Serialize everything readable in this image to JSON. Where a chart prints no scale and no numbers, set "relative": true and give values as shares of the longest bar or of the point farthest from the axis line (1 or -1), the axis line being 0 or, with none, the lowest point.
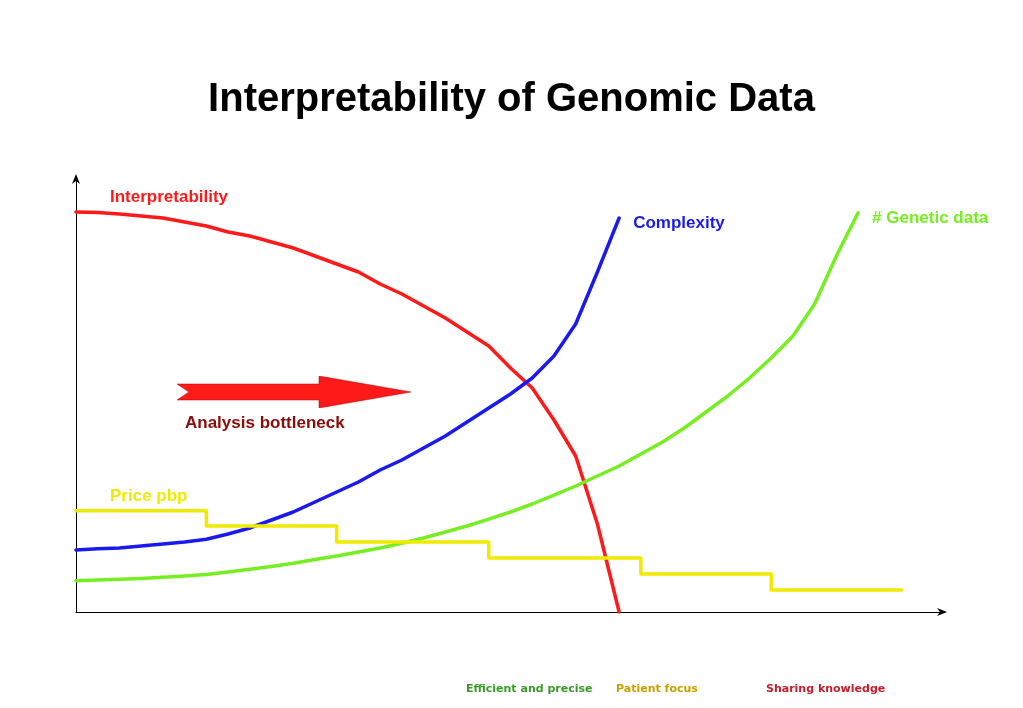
{
  "chart_data": {
    "type": "line",
    "title": "Interpretability of Genomic Data",
    "relative": true,
    "grid": false,
    "legend": false,
    "marker": "none",
    "categories": [
      null,
      null,
      null,
      null,
      null,
      null,
      null,
      null,
      null,
      null,
      null,
      null,
      null,
      null,
      null,
      null,
      null,
      null,
      null,
      null,
      null,
      null,
      null,
      null,
      null,
      null,
      null,
      null,
      null,
      null,
      null,
      null,
      null,
      null,
      null,
      null,
      null,
      null,
      null,
      null,
      null
    ],
    "series": [
      {
        "name": "Interpretability",
        "color": "#ff1a1a",
        "values": [
          1,
          0.999,
          0.995,
          0.99,
          0.985,
          0.975,
          0.965,
          0.95,
          0.94,
          0.925,
          0.91,
          0.89,
          0.87,
          0.85,
          0.82,
          0.795,
          0.765,
          0.735,
          0.7,
          0.665,
          0.61,
          0.56,
          0.48,
          0.39,
          0.22,
          0,
          null,
          null,
          null,
          null,
          null,
          null,
          null,
          null,
          null,
          null,
          null,
          null,
          null,
          null,
          null
        ]
      },
      {
        "name": "Complexity",
        "color": "#1a1aee",
        "values": [
          0.155,
          0.158,
          0.16,
          0.165,
          0.17,
          0.175,
          0.182,
          0.195,
          0.21,
          0.23,
          0.25,
          0.275,
          0.3,
          0.325,
          0.355,
          0.38,
          0.41,
          0.44,
          0.475,
          0.51,
          0.545,
          0.585,
          0.64,
          0.72,
          0.85,
          0.985,
          null,
          null,
          null,
          null,
          null,
          null,
          null,
          null,
          null,
          null,
          null,
          null,
          null,
          null,
          null
        ]
      },
      {
        "name": "# Genetic data",
        "color": "#77ee22",
        "values": [
          0.078,
          0.08,
          0.082,
          0.084,
          0.087,
          0.09,
          0.094,
          0.1,
          0.107,
          0.114,
          0.122,
          0.131,
          0.14,
          0.15,
          0.16,
          0.172,
          0.185,
          0.2,
          0.215,
          0.232,
          0.25,
          0.27,
          0.292,
          0.315,
          0.34,
          0.365,
          0.395,
          0.425,
          0.46,
          0.5,
          0.54,
          0.585,
          0.635,
          0.69,
          0.77,
          0.89,
          0.998,
          null,
          null,
          null,
          null
        ]
      },
      {
        "name": "Price pbp",
        "type": "step",
        "color": "#f0ea00",
        "values": [
          0.253,
          0.253,
          0.253,
          0.253,
          0.253,
          0.253,
          0.253,
          0.215,
          0.215,
          0.215,
          0.215,
          0.215,
          0.215,
          0.175,
          0.175,
          0.175,
          0.175,
          0.175,
          0.175,
          0.175,
          0.135,
          0.135,
          0.135,
          0.135,
          0.135,
          0.135,
          0.135,
          0.095,
          0.095,
          0.095,
          0.095,
          0.095,
          0.095,
          0.055,
          0.055,
          0.055,
          0.055,
          0.055,
          0.055,
          null,
          null
        ]
      }
    ],
    "annotations": [
      "Analysis bottleneck",
      "Efficient and precise",
      "Patient focus",
      "Sharing knowledge"
    ]
  }
}
